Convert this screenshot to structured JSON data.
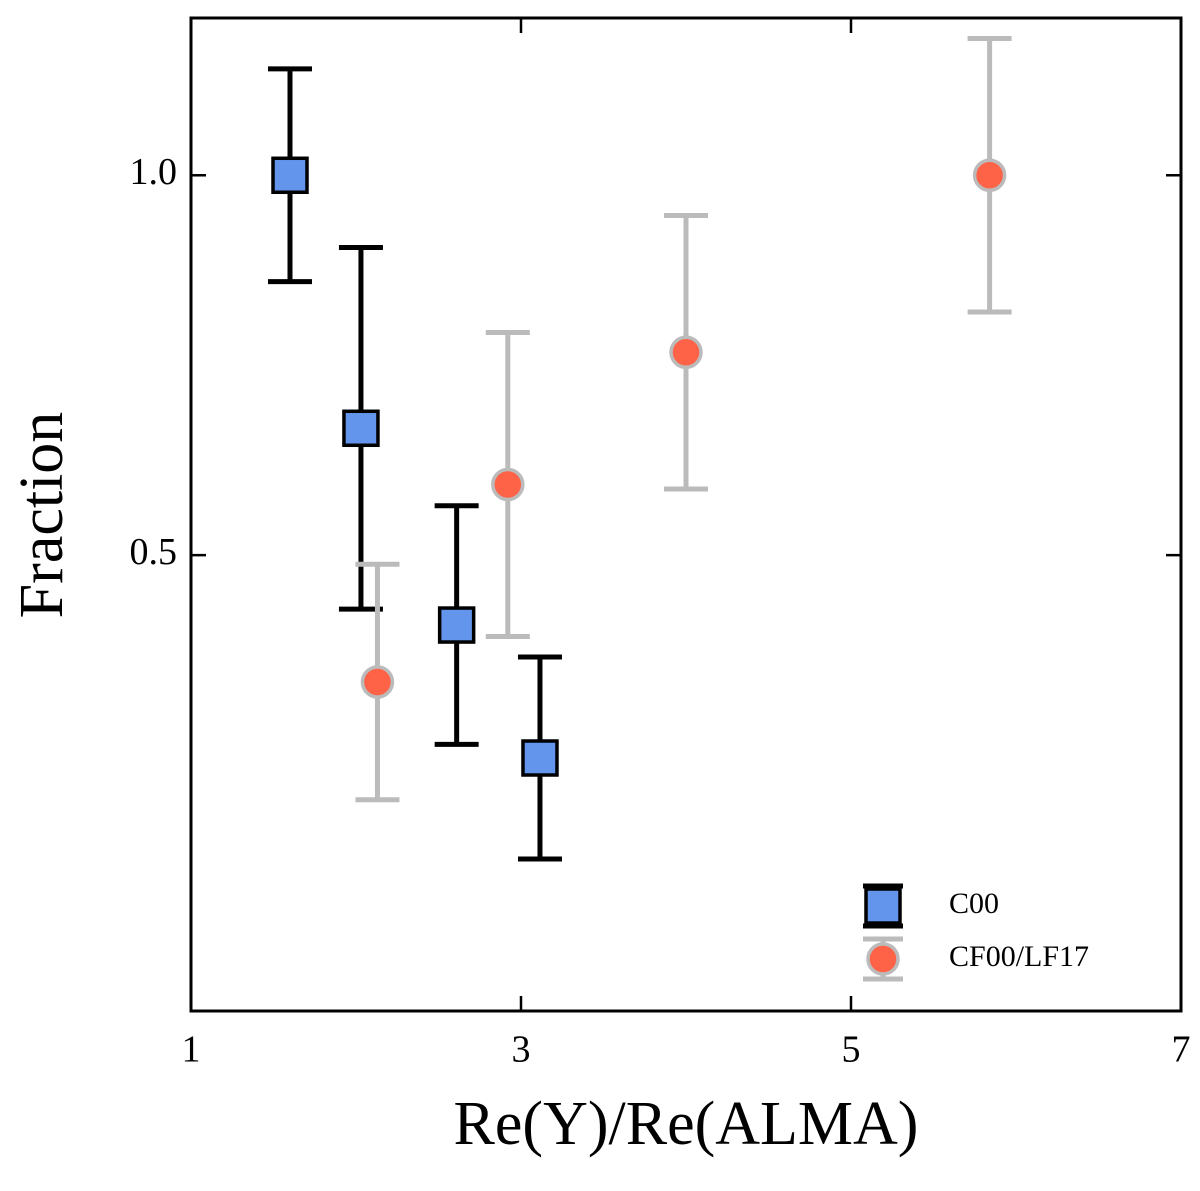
{
  "chart_data": {
    "type": "errorbar-scatter",
    "xlabel": "Re(Y)/Re(ALMA)",
    "ylabel": "Fraction",
    "xlim": [
      1,
      7
    ],
    "xticks": [
      1,
      3,
      5,
      7
    ],
    "ylim": [
      -0.1,
      1.207
    ],
    "yticks": [
      0.5,
      {
        "value": 1,
        "label": "1.0"
      }
    ],
    "grid": false,
    "legend": "lower right",
    "series": [
      {
        "name": "C00",
        "marker": "square",
        "color": "#6495ed",
        "edgecolor": "#000000",
        "x": [
          1.6,
          2.03,
          2.61,
          3.115
        ],
        "values": [
          1.0,
          0.667,
          0.408,
          0.233
        ],
        "errors": [
          0.14,
          0.238,
          0.157,
          0.133
        ]
      },
      {
        "name": "CF00/LF17",
        "marker": "circle",
        "color": "#ff6347",
        "edgecolor": "#bbbbbb",
        "x": [
          2.13,
          2.92,
          4.0,
          5.84
        ],
        "values": [
          0.333,
          0.593,
          0.767,
          1.0
        ],
        "errors": [
          0.155,
          0.2,
          0.18,
          0.18
        ]
      }
    ]
  }
}
